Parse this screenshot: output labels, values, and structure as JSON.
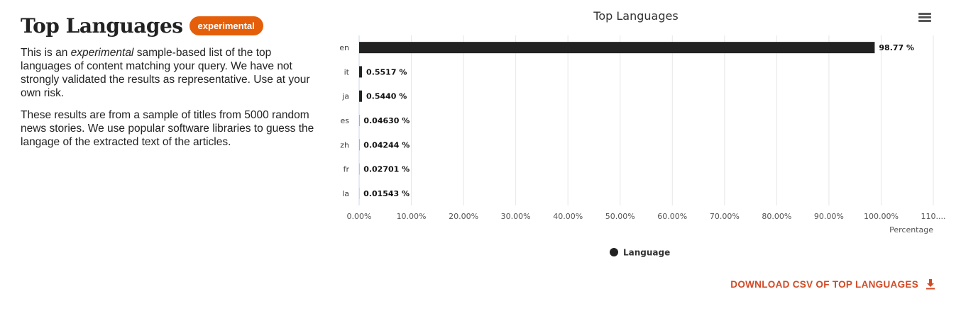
{
  "section": {
    "title": "Top Languages",
    "badge": "experimental",
    "para1_pre": "This is an ",
    "para1_em": "experimental",
    "para1_post": " sample-based list of the top languages of content matching your query. We have not strongly validated the results as representative. Use at your own risk.",
    "para2": "These results are from a sample of titles from 5000 random news stories. We use popular software libraries to guess the langage of the extracted text of the articles."
  },
  "download": {
    "label": "DOWNLOAD CSV OF TOP LANGUAGES",
    "icon": "download-icon"
  },
  "menu": {
    "icon": "hamburger-menu-icon"
  },
  "chart_data": {
    "type": "bar",
    "orientation": "horizontal",
    "title": "Top Languages",
    "xlabel": "Percentage",
    "ylabel": "",
    "categories": [
      "en",
      "it",
      "ja",
      "es",
      "zh",
      "fr",
      "la"
    ],
    "series": [
      {
        "name": "Language",
        "values": [
          98.77,
          0.5517,
          0.544,
          0.0463,
          0.04244,
          0.02701,
          0.01543
        ],
        "labels": [
          "98.77 %",
          "0.5517 %",
          "0.5440 %",
          "0.04630 %",
          "0.04244 %",
          "0.02701 %",
          "0.01543 %"
        ]
      }
    ],
    "xlim": [
      0,
      110
    ],
    "xticks": [
      0,
      10,
      20,
      30,
      40,
      50,
      60,
      70,
      80,
      90,
      100,
      110
    ],
    "xtick_labels": [
      "0.00%",
      "10.00%",
      "20.00%",
      "30.00%",
      "40.00%",
      "50.00%",
      "60.00%",
      "70.00%",
      "80.00%",
      "90.00%",
      "100.00%",
      "110...."
    ],
    "grid": true,
    "legend": "bottom-center",
    "bar_color": "#222222"
  }
}
